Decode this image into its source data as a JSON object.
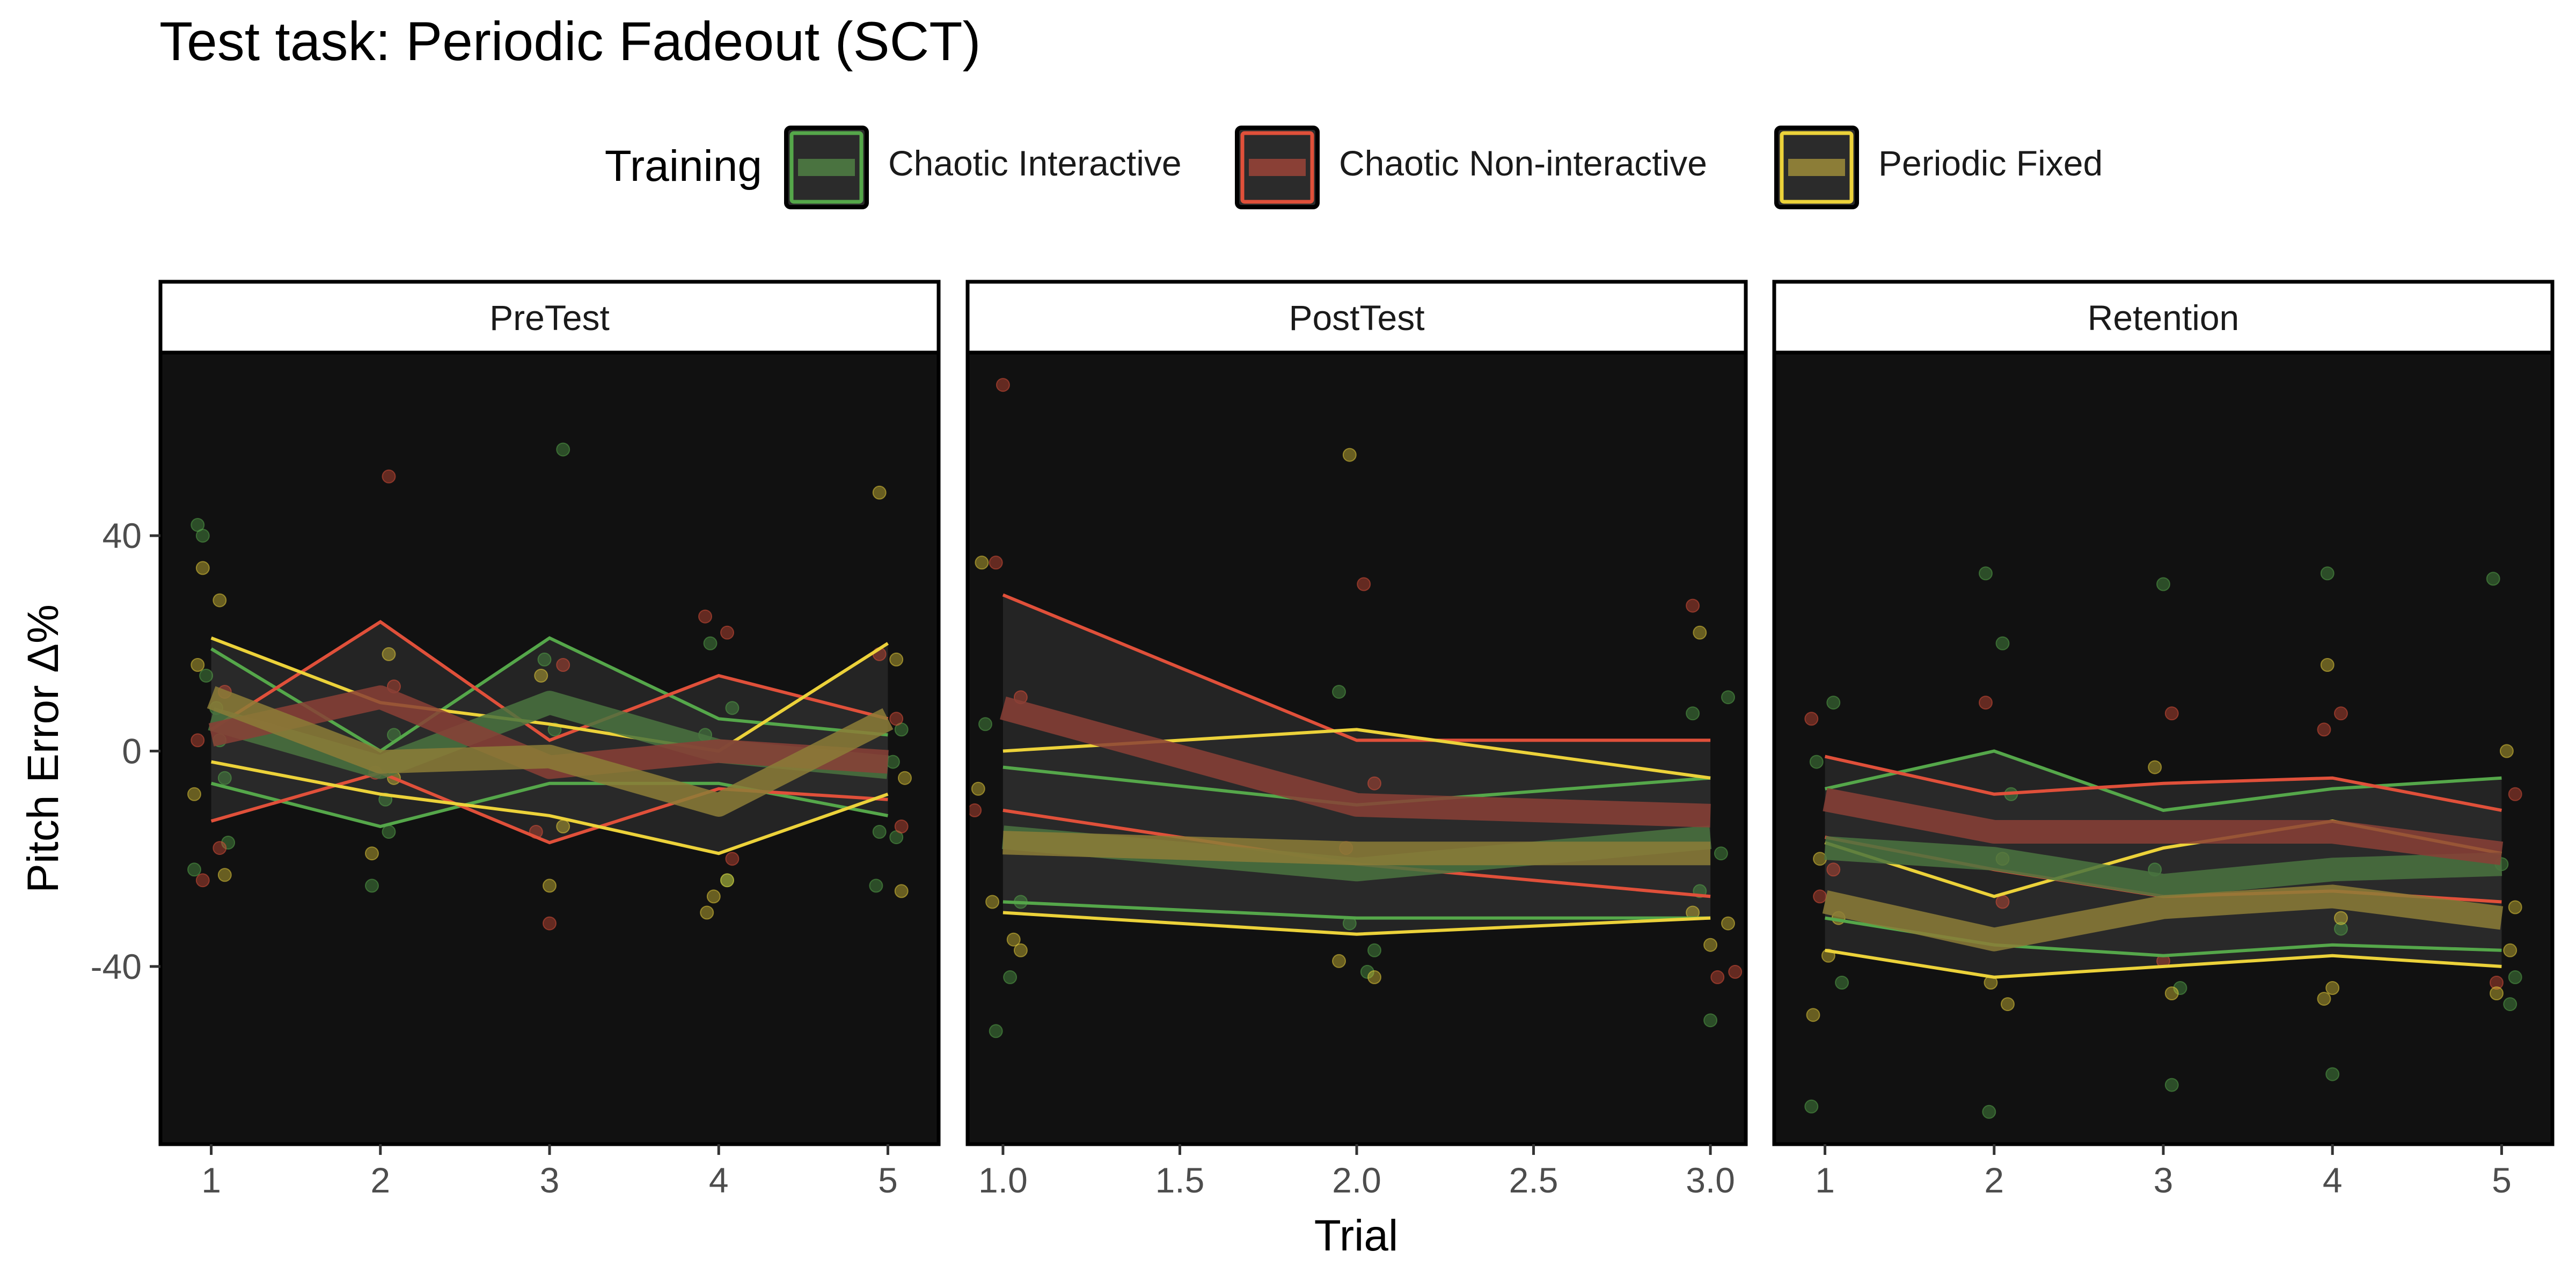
{
  "title": "Test task: Periodic Fadeout (SCT)",
  "legend": {
    "title": "Training",
    "position": "top",
    "items": [
      {
        "label": "Chaotic Interactive",
        "color": "#55a74a",
        "fill": "#4a7340"
      },
      {
        "label": "Chaotic Non-interactive",
        "color": "#e0503a",
        "fill": "#8a4036"
      },
      {
        "label": "Periodic Fixed",
        "color": "#ecd23a",
        "fill": "#8c7d37"
      }
    ]
  },
  "ylabel": "Pitch Error Δ%",
  "xlabel": "Trial",
  "colors": {
    "panel_bg": "#111111",
    "ribbon": "#2b2b2b",
    "axis_text": "#4d4d4d"
  },
  "chart_data": {
    "type": "line",
    "ylim": [
      -73,
      74
    ],
    "yticks": [
      -40,
      0,
      40
    ],
    "grid": false,
    "facets": [
      {
        "name": "PreTest",
        "xlim": [
          0.7,
          5.3
        ],
        "xticks": [
          1,
          2,
          3,
          4,
          5
        ],
        "xtick_labels": [
          "1",
          "2",
          "3",
          "4",
          "5"
        ],
        "x": [
          1,
          2,
          3,
          4,
          5
        ],
        "series": [
          {
            "group": "Chaotic Interactive",
            "mean": [
              6,
              -3,
              9,
              0,
              -3
            ],
            "lower": [
              -6,
              -14,
              -6,
              -6,
              -12
            ],
            "upper": [
              19,
              0,
              21,
              6,
              3
            ]
          },
          {
            "group": "Chaotic Non-interactive",
            "mean": [
              3,
              10,
              -3,
              0,
              -2
            ],
            "lower": [
              -13,
              -4,
              -17,
              -7,
              -9
            ],
            "upper": [
              4,
              24,
              2,
              14,
              6
            ]
          },
          {
            "group": "Periodic Fixed",
            "mean": [
              10,
              -2,
              -1,
              -10,
              6
            ],
            "lower": [
              -2,
              -8,
              -12,
              -19,
              -8
            ],
            "upper": [
              21,
              9,
              5,
              0,
              20
            ]
          }
        ]
      },
      {
        "name": "PostTest",
        "xlim": [
          0.9,
          3.1
        ],
        "xticks": [
          1.0,
          1.5,
          2.0,
          2.5,
          3.0
        ],
        "xtick_labels": [
          "1.0",
          "1.5",
          "2.0",
          "2.5",
          "3.0"
        ],
        "x": [
          1,
          2,
          3
        ],
        "series": [
          {
            "group": "Chaotic Interactive",
            "mean": [
              -16,
              -22,
              -16
            ],
            "lower": [
              -28,
              -31,
              -31
            ],
            "upper": [
              -3,
              -10,
              -5
            ]
          },
          {
            "group": "Chaotic Non-interactive",
            "mean": [
              8,
              -10,
              -12
            ],
            "lower": [
              -11,
              -21,
              -27
            ],
            "upper": [
              29,
              2,
              2
            ]
          },
          {
            "group": "Periodic Fixed",
            "mean": [
              -17,
              -19,
              -19
            ],
            "lower": [
              -30,
              -34,
              -31
            ],
            "upper": [
              0,
              4,
              -5
            ]
          }
        ]
      },
      {
        "name": "Retention",
        "xlim": [
          0.7,
          5.3
        ],
        "xticks": [
          1,
          2,
          3,
          4,
          5
        ],
        "xtick_labels": [
          "1",
          "2",
          "3",
          "4",
          "5"
        ],
        "x": [
          1,
          2,
          3,
          4,
          5
        ],
        "series": [
          {
            "group": "Chaotic Interactive",
            "mean": [
              -18,
              -20,
              -25,
              -22,
              -21
            ],
            "lower": [
              -31,
              -36,
              -38,
              -36,
              -37
            ],
            "upper": [
              -7,
              0,
              -11,
              -7,
              -5
            ]
          },
          {
            "group": "Chaotic Non-interactive",
            "mean": [
              -9,
              -15,
              -15,
              -15,
              -19
            ],
            "lower": [
              -16,
              -22,
              -27,
              -26,
              -28
            ],
            "upper": [
              -1,
              -8,
              -6,
              -5,
              -11
            ]
          },
          {
            "group": "Periodic Fixed",
            "mean": [
              -28,
              -35,
              -29,
              -27,
              -31
            ],
            "lower": [
              -37,
              -42,
              -40,
              -38,
              -40
            ],
            "upper": [
              -17,
              -27,
              -18,
              -13,
              -19
            ]
          }
        ]
      }
    ],
    "points": [
      {
        "facet": 0,
        "group": "Chaotic Interactive",
        "x": [
          0.92,
          0.95,
          1.05,
          1.08,
          0.9,
          1.1,
          0.97,
          1.03,
          2.05,
          1.95,
          2.03,
          2.08,
          3.08,
          2.97,
          3.03,
          3.95,
          4.05,
          4.08,
          3.92,
          5.05,
          4.95,
          4.93,
          5.08,
          5.03
        ],
        "y": [
          42,
          40,
          2,
          -5,
          -22,
          -17,
          14,
          8,
          -15,
          -25,
          -9,
          3,
          56,
          17,
          4,
          20,
          -24,
          8,
          3,
          -16,
          -15,
          -25,
          4,
          -2
        ]
      },
      {
        "facet": 0,
        "group": "Chaotic Non-interactive",
        "x": [
          1.05,
          0.95,
          1.08,
          0.92,
          2.05,
          1.97,
          2.08,
          3.0,
          2.92,
          3.08,
          3.92,
          4.05,
          4.08,
          4.95,
          5.05,
          5.08
        ],
        "y": [
          -18,
          -24,
          11,
          2,
          51,
          -4,
          12,
          -32,
          -15,
          16,
          25,
          22,
          -20,
          18,
          6,
          -14
        ]
      },
      {
        "facet": 0,
        "group": "Periodic Fixed",
        "x": [
          0.95,
          1.05,
          0.92,
          1.08,
          0.9,
          1.95,
          2.05,
          2.08,
          3.0,
          2.95,
          3.08,
          3.93,
          3.97,
          4.05,
          4.95,
          5.08,
          5.05,
          5.1
        ],
        "y": [
          34,
          28,
          16,
          -23,
          -8,
          -19,
          18,
          -5,
          -25,
          14,
          -14,
          -30,
          -27,
          -24,
          48,
          -26,
          17,
          -5
        ]
      },
      {
        "facet": 1,
        "group": "Chaotic Interactive",
        "x": [
          0.95,
          1.02,
          0.98,
          1.05,
          1.95,
          2.03,
          1.98,
          2.05,
          3.0,
          2.95,
          3.05,
          3.03,
          2.97
        ],
        "y": [
          5,
          -42,
          -52,
          -28,
          11,
          -41,
          -32,
          -37,
          -50,
          7,
          10,
          -19,
          -26
        ]
      },
      {
        "facet": 1,
        "group": "Chaotic Non-interactive",
        "x": [
          1.0,
          0.92,
          0.98,
          1.05,
          2.02,
          1.97,
          2.05,
          2.95,
          3.02,
          3.07
        ],
        "y": [
          68,
          -11,
          35,
          10,
          31,
          -18,
          -6,
          27,
          -42,
          -41
        ]
      },
      {
        "facet": 1,
        "group": "Periodic Fixed",
        "x": [
          0.94,
          0.97,
          1.03,
          1.05,
          0.93,
          1.98,
          1.95,
          2.05,
          2.97,
          3.0,
          3.05,
          2.95
        ],
        "y": [
          35,
          -28,
          -35,
          -37,
          -7,
          55,
          -39,
          -42,
          22,
          -36,
          -32,
          -30
        ]
      },
      {
        "facet": 2,
        "group": "Chaotic Interactive",
        "x": [
          1.05,
          0.95,
          1.1,
          0.92,
          1.95,
          2.05,
          2.1,
          1.97,
          3.0,
          3.05,
          3.1,
          2.95,
          3.97,
          4.0,
          4.05,
          4.95,
          5.05,
          5.08,
          5.0
        ],
        "y": [
          9,
          -2,
          -43,
          -66,
          33,
          20,
          -8,
          -67,
          31,
          -62,
          -44,
          -22,
          33,
          -60,
          -33,
          32,
          -47,
          -42,
          -21
        ]
      },
      {
        "facet": 2,
        "group": "Chaotic Non-interactive",
        "x": [
          0.92,
          0.97,
          1.05,
          1.95,
          2.05,
          3.05,
          3.0,
          3.95,
          4.05,
          4.97,
          5.08
        ],
        "y": [
          6,
          -27,
          -22,
          9,
          -28,
          7,
          -39,
          4,
          7,
          -43,
          -8
        ]
      },
      {
        "facet": 2,
        "group": "Periodic Fixed",
        "x": [
          0.93,
          1.02,
          0.97,
          1.08,
          1.98,
          2.08,
          2.05,
          2.95,
          3.05,
          3.97,
          4.0,
          4.05,
          3.95,
          4.97,
          5.05,
          5.08,
          5.03
        ],
        "y": [
          -49,
          -38,
          -20,
          -31,
          -43,
          -47,
          -20,
          -3,
          -45,
          16,
          -44,
          -31,
          -46,
          -45,
          -37,
          -29,
          0
        ]
      }
    ]
  }
}
